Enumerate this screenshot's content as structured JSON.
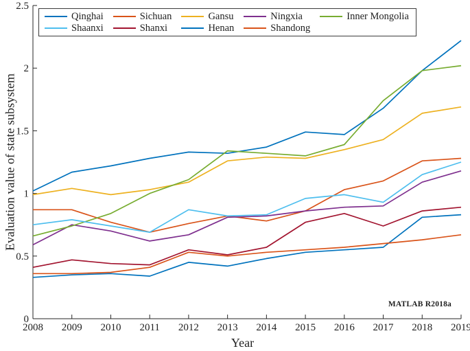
{
  "chart_data": {
    "type": "line",
    "title": "",
    "xlabel": "Year",
    "ylabel": "Evaluation value of state subsystem",
    "watermark": "MATLAB R2018a",
    "grid": false,
    "legend_position": "top-left-inside",
    "legend_rows": [
      [
        "Qinghai",
        "Sichuan",
        "Gansu",
        "Ningxia",
        "Inner Mongolia"
      ],
      [
        "Shaanxi",
        "Shanxi",
        "Henan",
        "Shandong"
      ]
    ],
    "xlim": [
      2008,
      2019
    ],
    "ylim": [
      0,
      2.5
    ],
    "x_ticks": [
      2008,
      2009,
      2010,
      2011,
      2012,
      2013,
      2014,
      2015,
      2016,
      2017,
      2018,
      2019
    ],
    "y_ticks": [
      0,
      0.5,
      1,
      1.5,
      2,
      2.5
    ],
    "y_tick_labels": [
      "0",
      "0.5",
      "1",
      "1.5",
      "2",
      "2.5"
    ],
    "x": [
      2008,
      2009,
      2010,
      2011,
      2012,
      2013,
      2014,
      2015,
      2016,
      2017,
      2018,
      2019
    ],
    "axis_color": "#262626",
    "series": [
      {
        "name": "Qinghai",
        "color": "#0072BD",
        "values": [
          1.02,
          1.17,
          1.22,
          1.28,
          1.33,
          1.32,
          1.37,
          1.49,
          1.47,
          1.68,
          1.98,
          2.22
        ]
      },
      {
        "name": "Sichuan",
        "color": "#D95319",
        "values": [
          0.87,
          0.87,
          0.77,
          0.69,
          0.76,
          0.82,
          0.78,
          0.86,
          1.03,
          1.1,
          1.26,
          1.28
        ]
      },
      {
        "name": "Gansu",
        "color": "#EDB120",
        "values": [
          0.99,
          1.04,
          0.99,
          1.03,
          1.09,
          1.26,
          1.29,
          1.28,
          1.35,
          1.43,
          1.64,
          1.69
        ]
      },
      {
        "name": "Ningxia",
        "color": "#7E2F8E",
        "values": [
          0.59,
          0.75,
          0.7,
          0.62,
          0.67,
          0.81,
          0.82,
          0.86,
          0.89,
          0.9,
          1.09,
          1.18
        ]
      },
      {
        "name": "Inner Mongolia",
        "color": "#77AC30",
        "values": [
          0.66,
          0.74,
          0.84,
          1.0,
          1.11,
          1.34,
          1.32,
          1.3,
          1.39,
          1.74,
          1.98,
          2.02
        ]
      },
      {
        "name": "Shaanxi",
        "color": "#4DBEEE",
        "values": [
          0.75,
          0.79,
          0.74,
          0.69,
          0.87,
          0.82,
          0.83,
          0.96,
          0.99,
          0.93,
          1.15,
          1.25
        ]
      },
      {
        "name": "Shanxi",
        "color": "#A2142F",
        "values": [
          0.41,
          0.47,
          0.44,
          0.43,
          0.55,
          0.51,
          0.57,
          0.77,
          0.84,
          0.74,
          0.86,
          0.89
        ]
      },
      {
        "name": "Henan",
        "color": "#0072BD",
        "values": [
          0.33,
          0.35,
          0.36,
          0.34,
          0.45,
          0.42,
          0.48,
          0.53,
          0.55,
          0.57,
          0.81,
          0.83
        ]
      },
      {
        "name": "Shandong",
        "color": "#D95319",
        "values": [
          0.36,
          0.36,
          0.37,
          0.41,
          0.53,
          0.5,
          0.53,
          0.55,
          0.57,
          0.6,
          0.63,
          0.67
        ]
      }
    ]
  }
}
